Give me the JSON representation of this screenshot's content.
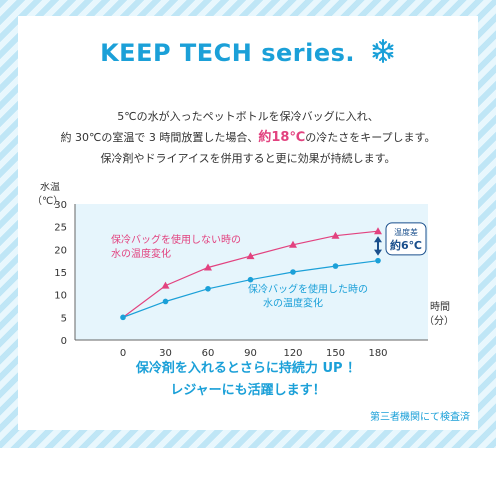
{
  "header": {
    "title": "KEEP TECH series.",
    "icon": "snowflake-icon"
  },
  "description": {
    "line1": "5℃の水が入ったペットボトルを保冷バッグに入れ、",
    "line2_before": "約 30℃の室温で 3 時間放置した場合、",
    "line2_highlight": "約18℃",
    "line2_after": "の冷たさをキープします。",
    "line3": "保冷剤やドライアイスを併用すると更に効果が持続します。"
  },
  "chart_data": {
    "type": "line",
    "ylabel_line1": "水温",
    "ylabel_line2": "（℃）",
    "xlabel_line1": "時間",
    "xlabel_line2": "（分）",
    "x": [
      0,
      30,
      60,
      90,
      120,
      150,
      180
    ],
    "yticks": [
      0,
      5,
      10,
      15,
      20,
      25,
      30
    ],
    "ylim": [
      0,
      30
    ],
    "xlim": [
      0,
      180
    ],
    "grid": false,
    "series": [
      {
        "label_line1": "保冷バッグを使用しない時の",
        "label_line2": "水の温度変化",
        "color": "#e2427f",
        "marker": "triangle",
        "values": [
          5,
          12,
          16,
          18.5,
          21,
          23,
          24
        ]
      },
      {
        "label_line1": "保冷バッグを使用した時の",
        "label_line2": "水の温度変化",
        "color": "#1ba0d8",
        "marker": "circle",
        "values": [
          5,
          8.5,
          11.3,
          13.3,
          15,
          16.3,
          17.5
        ]
      }
    ],
    "annotation": {
      "line1": "温度差",
      "line2": "約6℃"
    }
  },
  "footer": {
    "line1": "保冷剤を入れるとさらに持続力 UP ！",
    "line2": "レジャーにも活躍します！"
  },
  "note": "第三者機関にて検査済",
  "colors": {
    "accent": "#1ba0d8",
    "highlight": "#e2427f",
    "plot_bg": "#e6f5fc"
  }
}
